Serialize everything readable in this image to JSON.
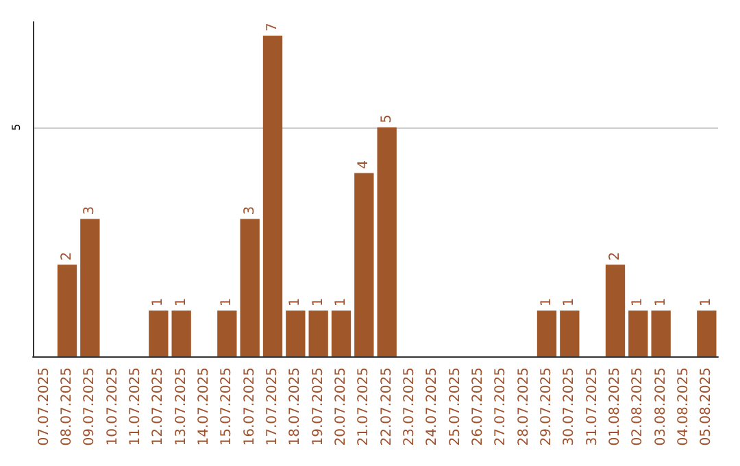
{
  "chart_data": {
    "type": "bar",
    "categories": [
      "07.07.2025",
      "08.07.2025",
      "09.07.2025",
      "10.07.2025",
      "11.07.2025",
      "12.07.2025",
      "13.07.2025",
      "14.07.2025",
      "15.07.2025",
      "16.07.2025",
      "17.07.2025",
      "18.07.2025",
      "19.07.2025",
      "20.07.2025",
      "21.07.2025",
      "22.07.2025",
      "23.07.2025",
      "24.07.2025",
      "25.07.2025",
      "26.07.2025",
      "27.07.2025",
      "28.07.2025",
      "29.07.2025",
      "30.07.2025",
      "31.07.2025",
      "01.08.2025",
      "02.08.2025",
      "03.08.2025",
      "04.08.2025",
      "05.08.2025"
    ],
    "values": [
      0,
      2,
      3,
      0,
      0,
      1,
      1,
      0,
      1,
      3,
      7,
      1,
      1,
      1,
      4,
      5,
      0,
      0,
      0,
      0,
      0,
      0,
      1,
      1,
      0,
      2,
      1,
      1,
      0,
      1
    ],
    "value_labels": [
      null,
      "2",
      "3",
      null,
      null,
      "1",
      "1",
      null,
      "1",
      "3",
      "7",
      "1",
      "1",
      "1",
      "4",
      "5",
      null,
      null,
      null,
      null,
      null,
      null,
      "1",
      "1",
      null,
      "2",
      "1",
      "1",
      null,
      "1"
    ],
    "color": "#a0572a",
    "ylim": [
      0,
      7.3
    ],
    "yticks": [
      5
    ],
    "grid": "y"
  }
}
